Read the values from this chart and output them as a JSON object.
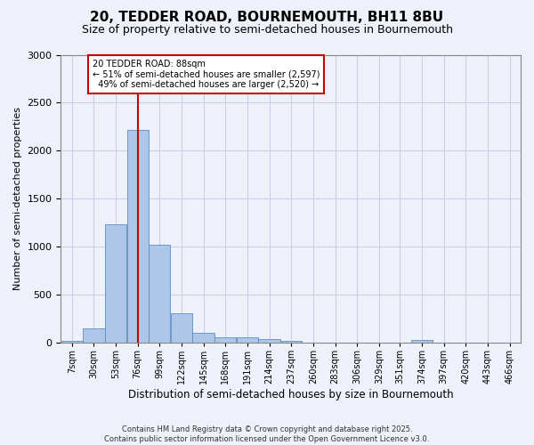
{
  "title": "20, TEDDER ROAD, BOURNEMOUTH, BH11 8BU",
  "subtitle": "Size of property relative to semi-detached houses in Bournemouth",
  "xlabel": "Distribution of semi-detached houses by size in Bournemouth",
  "ylabel": "Number of semi-detached properties",
  "footer_line1": "Contains HM Land Registry data © Crown copyright and database right 2025.",
  "footer_line2": "Contains public sector information licensed under the Open Government Licence v3.0.",
  "property_label": "20 TEDDER ROAD: 88sqm",
  "smaller_pct": "51",
  "smaller_count": "2,597",
  "larger_pct": "49",
  "larger_count": "2,520",
  "property_sqm": 88,
  "bin_labels": [
    "7sqm",
    "30sqm",
    "53sqm",
    "76sqm",
    "99sqm",
    "122sqm",
    "145sqm",
    "168sqm",
    "191sqm",
    "214sqm",
    "237sqm",
    "260sqm",
    "283sqm",
    "306sqm",
    "329sqm",
    "351sqm",
    "374sqm",
    "397sqm",
    "420sqm",
    "443sqm",
    "466sqm"
  ],
  "bin_edges": [
    7,
    30,
    53,
    76,
    99,
    122,
    145,
    168,
    191,
    214,
    237,
    260,
    283,
    306,
    329,
    351,
    374,
    397,
    420,
    443,
    466
  ],
  "bar_values": [
    20,
    150,
    1230,
    2220,
    1020,
    310,
    100,
    60,
    60,
    40,
    20,
    0,
    0,
    0,
    0,
    0,
    30,
    0,
    0,
    0,
    0
  ],
  "bar_color": "#aec6e8",
  "bar_edge_color": "#5a8fc0",
  "vline_color": "#cc0000",
  "annotation_box_color": "#cc0000",
  "background_color": "#eef0fa",
  "grid_color": "#c8cce8",
  "ylim": [
    0,
    3000
  ],
  "yticks": [
    0,
    500,
    1000,
    1500,
    2000,
    2500,
    3000
  ],
  "title_fontsize": 11,
  "subtitle_fontsize": 9
}
